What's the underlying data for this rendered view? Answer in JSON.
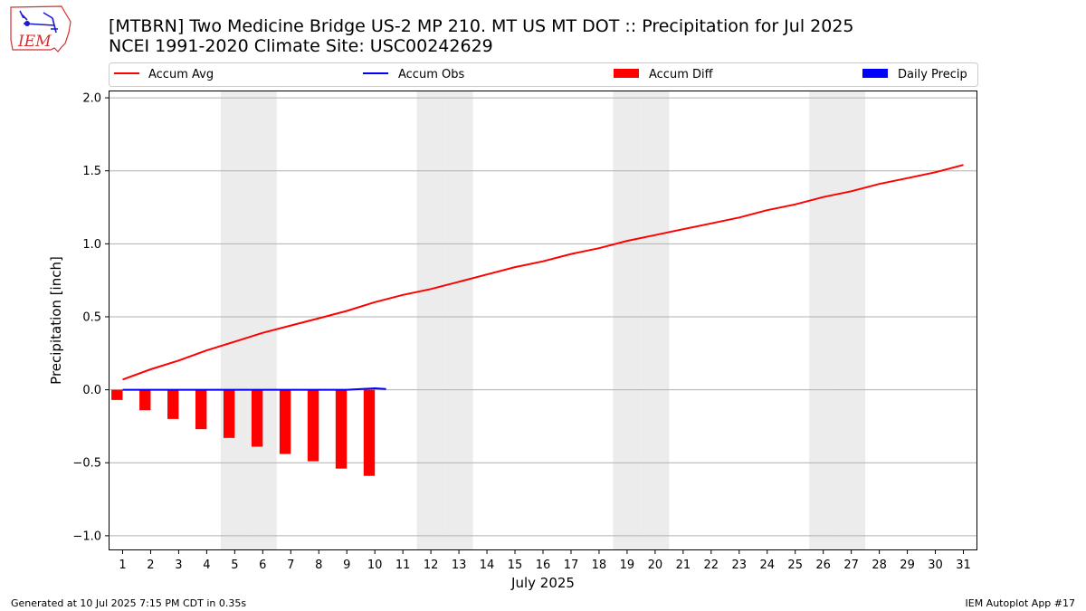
{
  "title_line1": "[MTBRN] Two Medicine Bridge US-2 MP 210. MT US MT DOT :: Precipitation for Jul 2025",
  "title_line2": "NCEI 1991-2020 Climate Site: USC00242629",
  "footer_left": "Generated at 10 Jul 2025 7:15 PM CDT in 0.35s",
  "footer_right": "IEM Autoplot App #17",
  "logo_text": "IEM",
  "colors": {
    "avg": "#ff0000",
    "obs": "#0000ff",
    "diff": "#ff0000",
    "daily": "#0000ff",
    "weekend": "#ececec",
    "grid": "#b0b0b0"
  },
  "chart_data": {
    "type": "bar",
    "xlabel": "July 2025",
    "ylabel": "Precipitation [inch]",
    "ylim": [
      -1.1,
      2.05
    ],
    "xlim": [
      0.5,
      31.5
    ],
    "yticks": [
      -1.0,
      -0.5,
      0.0,
      0.5,
      1.0,
      1.5,
      2.0
    ],
    "ytick_labels": [
      "−1.0",
      "−0.5",
      "0.0",
      "0.5",
      "1.0",
      "1.5",
      "2.0"
    ],
    "x": [
      1,
      2,
      3,
      4,
      5,
      6,
      7,
      8,
      9,
      10,
      11,
      12,
      13,
      14,
      15,
      16,
      17,
      18,
      19,
      20,
      21,
      22,
      23,
      24,
      25,
      26,
      27,
      28,
      29,
      30,
      31
    ],
    "grid": true,
    "legend_placement": "top",
    "weekend_days": [
      5,
      6,
      12,
      13,
      19,
      20,
      26,
      27
    ],
    "legend": [
      {
        "name": "Accum Avg",
        "kind": "line",
        "color": "#ff0000"
      },
      {
        "name": "Accum Obs",
        "kind": "line",
        "color": "#0000ff"
      },
      {
        "name": "Accum Diff",
        "kind": "bar",
        "color": "#ff0000"
      },
      {
        "name": "Daily Precip",
        "kind": "bar",
        "color": "#0000ff"
      }
    ],
    "series": [
      {
        "name": "Accum Avg",
        "kind": "line",
        "x": [
          1,
          2,
          3,
          4,
          5,
          6,
          7,
          8,
          9,
          10,
          11,
          12,
          13,
          14,
          15,
          16,
          17,
          18,
          19,
          20,
          21,
          22,
          23,
          24,
          25,
          26,
          27,
          28,
          29,
          30,
          31
        ],
        "values": [
          0.07,
          0.14,
          0.2,
          0.27,
          0.33,
          0.39,
          0.44,
          0.49,
          0.54,
          0.6,
          0.65,
          0.69,
          0.74,
          0.79,
          0.84,
          0.88,
          0.93,
          0.97,
          1.02,
          1.06,
          1.1,
          1.14,
          1.18,
          1.23,
          1.27,
          1.32,
          1.36,
          1.41,
          1.45,
          1.49,
          1.54
        ]
      },
      {
        "name": "Accum Obs",
        "kind": "line",
        "x": [
          1,
          2,
          3,
          4,
          5,
          6,
          7,
          8,
          9,
          10,
          10.4
        ],
        "values": [
          0.0,
          0.0,
          0.0,
          0.0,
          0.0,
          0.0,
          0.0,
          0.0,
          0.0,
          0.01,
          0.005
        ]
      },
      {
        "name": "Accum Diff",
        "kind": "bar",
        "x": [
          1,
          2,
          3,
          4,
          5,
          6,
          7,
          8,
          9,
          10
        ],
        "values": [
          -0.07,
          -0.14,
          -0.2,
          -0.27,
          -0.33,
          -0.39,
          -0.44,
          -0.49,
          -0.54,
          -0.59
        ]
      },
      {
        "name": "Daily Precip",
        "kind": "bar",
        "x": [],
        "values": []
      }
    ]
  }
}
